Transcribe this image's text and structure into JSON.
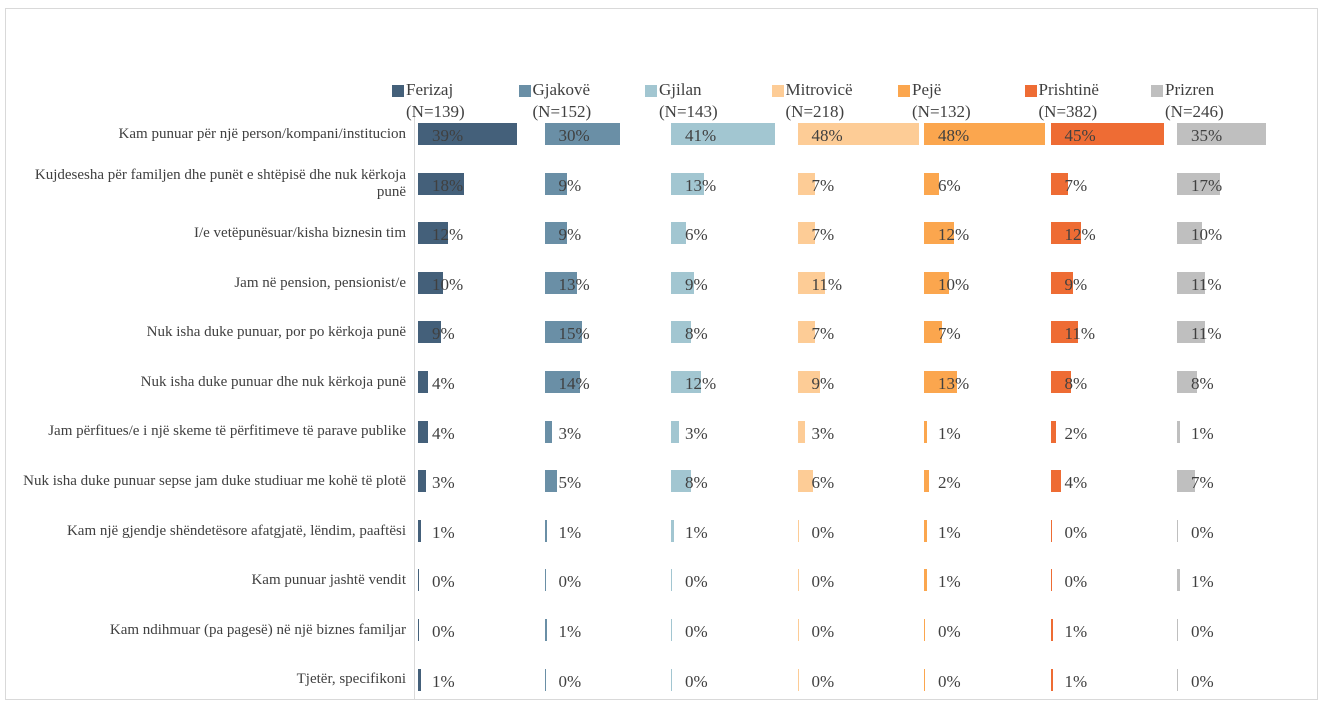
{
  "chart_data": {
    "type": "bar",
    "orientation": "horizontal",
    "layout": "small-multiples",
    "xlim": [
      0,
      50
    ],
    "categories": [
      "Kam punuar për një person/kompani/institucion",
      "Kujdesesha për familjen dhe punët e shtëpisë dhe nuk kërkoja punë",
      "I/e vetëpunësuar/kisha biznesin tim",
      "Jam në pension, pensionist/e",
      "Nuk isha duke punuar, por po kërkoja punë",
      "Nuk isha duke punuar dhe nuk kërkoja punë",
      "Jam përfitues/e i një skeme të përfitimeve të parave publike",
      "Nuk isha duke punuar sepse jam duke studiuar me kohë të plotë",
      "Kam një gjendje shëndetësore afatgjatë, lëndim, paaftësi",
      "Kam punuar jashtë vendit",
      "Kam ndihmuar (pa pagesë) në një biznes familjar",
      "Tjetër, specifikoni"
    ],
    "series": [
      {
        "name": "Ferizaj (N=139)",
        "color": "#44607a",
        "values": [
          39,
          18,
          12,
          10,
          9,
          4,
          4,
          3,
          1,
          0,
          0,
          1
        ],
        "value_labels": [
          "39%",
          "18%",
          "12%",
          "10%",
          "9%",
          "4%",
          "4%",
          "3%",
          "1%",
          "0%",
          "0%",
          "1%"
        ]
      },
      {
        "name": "Gjakovë (N=152)",
        "color": "#6a8fa6",
        "values": [
          30,
          9,
          9,
          13,
          15,
          14,
          3,
          5,
          1,
          0,
          1,
          0
        ],
        "value_labels": [
          "30%",
          "9%",
          "9%",
          "13%",
          "15%",
          "14%",
          "3%",
          "5%",
          "1%",
          "0%",
          "1%",
          "0%"
        ]
      },
      {
        "name": "Gjilan (N=143)",
        "color": "#a2c6d1",
        "values": [
          41,
          13,
          6,
          9,
          8,
          12,
          3,
          8,
          1,
          0,
          0,
          0
        ],
        "value_labels": [
          "41%",
          "13%",
          "6%",
          "9%",
          "8%",
          "12%",
          "3%",
          "8%",
          "1%",
          "0%",
          "0%",
          "0%"
        ]
      },
      {
        "name": "Mitrovicë (N=218)",
        "color": "#fdcc96",
        "values": [
          48,
          7,
          7,
          11,
          7,
          9,
          3,
          6,
          0,
          0,
          0,
          0
        ],
        "value_labels": [
          "48%",
          "7%",
          "7%",
          "11%",
          "7%",
          "9%",
          "3%",
          "6%",
          "0%",
          "0%",
          "0%",
          "0%"
        ]
      },
      {
        "name": "Pejë (N=132)",
        "color": "#fba64e",
        "values": [
          48,
          6,
          12,
          10,
          7,
          13,
          1,
          2,
          1,
          1,
          0,
          0
        ],
        "value_labels": [
          "48%",
          "6%",
          "12%",
          "10%",
          "7%",
          "13%",
          "1%",
          "2%",
          "1%",
          "1%",
          "0%",
          "0%"
        ]
      },
      {
        "name": "Prishtinë (N=382)",
        "color": "#ee6c34",
        "values": [
          45,
          7,
          12,
          9,
          11,
          8,
          2,
          4,
          0,
          0,
          1,
          1
        ],
        "value_labels": [
          "45%",
          "7%",
          "12%",
          "9%",
          "11%",
          "8%",
          "2%",
          "4%",
          "0%",
          "0%",
          "1%",
          "1%"
        ]
      },
      {
        "name": "Prizren (N=246)",
        "color": "#bfbfbf",
        "values": [
          35,
          17,
          10,
          11,
          11,
          8,
          1,
          7,
          0,
          1,
          0,
          0
        ],
        "value_labels": [
          "35%",
          "17%",
          "10%",
          "11%",
          "11%",
          "8%",
          "1%",
          "7%",
          "0%",
          "1%",
          "0%",
          "0%"
        ]
      }
    ]
  }
}
